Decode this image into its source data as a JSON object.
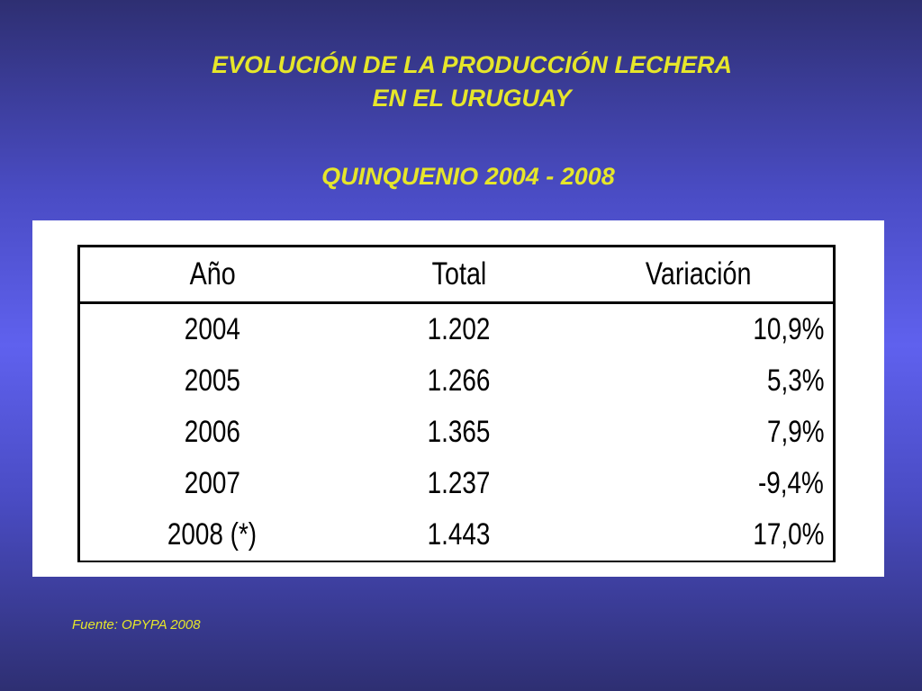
{
  "title": {
    "line1": "EVOLUCIÓN DE LA PRODUCCIÓN LECHERA",
    "line2": "EN EL URUGUAY"
  },
  "subtitle": "QUINQUENIO 2004 - 2008",
  "table": {
    "headers": [
      "Año",
      "Total",
      "Variación"
    ],
    "rows": [
      [
        "2004",
        "1.202",
        "10,9%"
      ],
      [
        "2005",
        "1.266",
        "5,3%"
      ],
      [
        "2006",
        "1.365",
        "7,9%"
      ],
      [
        "2007",
        "1.237",
        "-9,4%"
      ],
      [
        "2008 (*)",
        "1.443",
        "17,0%"
      ]
    ]
  },
  "source": "Fuente: OPYPA 2008",
  "colors": {
    "title": "#e6e62a",
    "background": "#5f61ee",
    "panel": "#ffffff"
  }
}
